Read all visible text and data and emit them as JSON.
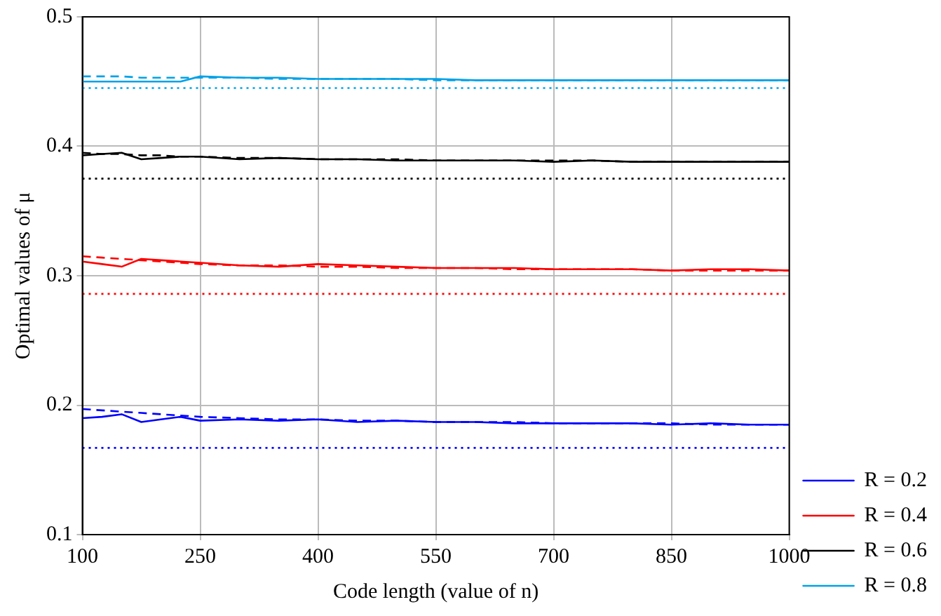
{
  "chart_data": {
    "type": "line",
    "xlabel": "Code length (value of n)",
    "ylabel": "Optimal values of μ",
    "x": [
      100,
      125,
      150,
      175,
      200,
      225,
      250,
      300,
      350,
      400,
      450,
      500,
      550,
      600,
      650,
      700,
      750,
      800,
      850,
      900,
      950,
      1000
    ],
    "xlim": [
      100,
      1000
    ],
    "xticks": [
      100,
      250,
      400,
      550,
      700,
      850,
      1000
    ],
    "ylim": [
      0.1,
      0.5
    ],
    "yticks": [
      0.1,
      0.2,
      0.3,
      0.4,
      0.5
    ],
    "grid": true,
    "legend": "bottom right",
    "marker": "none",
    "line_style": "solid",
    "series": [
      {
        "name": "R = 0.2",
        "color": "#0000ff",
        "values": [
          0.19,
          0.191,
          0.193,
          0.187,
          0.189,
          0.191,
          0.188,
          0.189,
          0.188,
          0.189,
          0.187,
          0.188,
          0.187,
          0.187,
          0.186,
          0.186,
          0.186,
          0.186,
          0.185,
          0.186,
          0.185,
          0.185
        ]
      },
      {
        "name": "R = 0.4",
        "color": "#ff0000",
        "values": [
          0.311,
          0.309,
          0.307,
          0.313,
          0.312,
          0.311,
          0.31,
          0.308,
          0.307,
          0.309,
          0.308,
          0.307,
          0.306,
          0.306,
          0.306,
          0.305,
          0.305,
          0.305,
          0.304,
          0.305,
          0.305,
          0.304
        ]
      },
      {
        "name": "R = 0.6",
        "color": "#000000",
        "values": [
          0.393,
          0.394,
          0.395,
          0.39,
          0.391,
          0.392,
          0.392,
          0.39,
          0.391,
          0.39,
          0.39,
          0.389,
          0.389,
          0.389,
          0.389,
          0.388,
          0.389,
          0.388,
          0.388,
          0.388,
          0.388,
          0.388
        ]
      },
      {
        "name": "R = 0.8",
        "color": "#00a2e8",
        "values": [
          0.45,
          0.45,
          0.45,
          0.45,
          0.45,
          0.45,
          0.454,
          0.453,
          0.453,
          0.452,
          0.452,
          0.452,
          0.452,
          0.451,
          0.451,
          0.451,
          0.451,
          0.451,
          0.451,
          0.451,
          0.451,
          0.451
        ]
      },
      {
        "color": "#0000ff",
        "line_style": "dashed",
        "values": [
          0.197,
          0.196,
          0.195,
          0.194,
          0.193,
          0.192,
          0.191,
          0.19,
          0.189,
          0.189,
          0.188,
          0.188,
          0.187,
          0.187,
          0.187,
          0.186,
          0.186,
          0.186,
          0.186,
          0.185,
          0.185,
          0.185
        ]
      },
      {
        "color": "#ff0000",
        "line_style": "dashed",
        "values": [
          0.315,
          0.314,
          0.313,
          0.312,
          0.311,
          0.31,
          0.309,
          0.308,
          0.308,
          0.307,
          0.307,
          0.306,
          0.306,
          0.306,
          0.305,
          0.305,
          0.305,
          0.305,
          0.304,
          0.304,
          0.304,
          0.304
        ]
      },
      {
        "color": "#000000",
        "line_style": "dashed",
        "values": [
          0.395,
          0.394,
          0.394,
          0.393,
          0.393,
          0.392,
          0.392,
          0.391,
          0.391,
          0.39,
          0.39,
          0.39,
          0.389,
          0.389,
          0.389,
          0.389,
          0.389,
          0.388,
          0.388,
          0.388,
          0.388,
          0.388
        ]
      },
      {
        "color": "#00a2e8",
        "line_style": "dashed",
        "values": [
          0.454,
          0.454,
          0.454,
          0.453,
          0.453,
          0.453,
          0.453,
          0.453,
          0.452,
          0.452,
          0.452,
          0.452,
          0.451,
          0.451,
          0.451,
          0.451,
          0.451,
          0.451,
          0.451,
          0.451,
          0.451,
          0.451
        ]
      }
    ],
    "ref_lines": [
      {
        "axis": "y",
        "value": 0.167,
        "color": "#0000ff",
        "line_style": "dotted"
      },
      {
        "axis": "y",
        "value": 0.286,
        "color": "#ff0000",
        "line_style": "dotted"
      },
      {
        "axis": "y",
        "value": 0.375,
        "color": "#000000",
        "line_style": "dotted"
      },
      {
        "axis": "y",
        "value": 0.445,
        "color": "#00a2e8",
        "line_style": "dotted"
      }
    ]
  }
}
